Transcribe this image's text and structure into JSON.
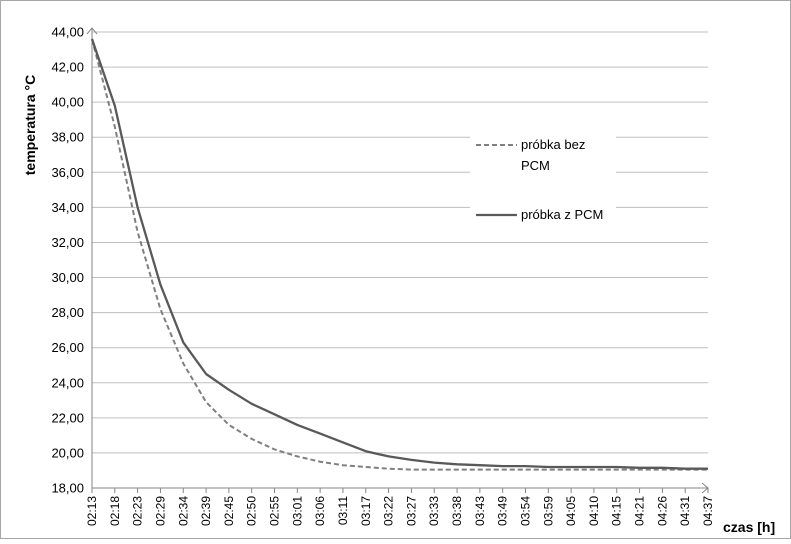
{
  "chart_data": {
    "type": "line",
    "ylabel": "temperatura °C",
    "xlabel": "czas [h]",
    "ylim": [
      18,
      44
    ],
    "y_ticks": [
      "18,00",
      "20,00",
      "22,00",
      "24,00",
      "26,00",
      "28,00",
      "30,00",
      "32,00",
      "34,00",
      "36,00",
      "38,00",
      "40,00",
      "42,00",
      "44,00"
    ],
    "x_ticks": [
      "02:13",
      "02:18",
      "02:23",
      "02:29",
      "02:34",
      "02:39",
      "02:45",
      "02:50",
      "02:55",
      "03:01",
      "03:06",
      "03:11",
      "03:17",
      "03:22",
      "03:27",
      "03:33",
      "03:38",
      "03:43",
      "03:49",
      "03:54",
      "03:59",
      "04:05",
      "04:10",
      "04:15",
      "04:21",
      "04:26",
      "04:31",
      "04:37"
    ],
    "grid": "horizontal",
    "legend_position": "right",
    "series": [
      {
        "name": "próbka bez PCM",
        "style": "dashed",
        "color": "#7f7f7f",
        "values": [
          43.6,
          38.6,
          32.6,
          28.2,
          25.1,
          22.9,
          21.6,
          20.8,
          20.2,
          19.8,
          19.5,
          19.3,
          19.2,
          19.1,
          19.05,
          19.05,
          19.05,
          19.05,
          19.05,
          19.05,
          19.05,
          19.05,
          19.05,
          19.05,
          19.05,
          19.05,
          19.05,
          19.05
        ]
      },
      {
        "name": "próbka z PCM",
        "style": "solid",
        "color": "#595959",
        "values": [
          43.6,
          39.8,
          34.0,
          29.6,
          26.3,
          24.5,
          23.6,
          22.8,
          22.2,
          21.6,
          21.1,
          20.6,
          20.1,
          19.8,
          19.6,
          19.45,
          19.35,
          19.3,
          19.25,
          19.25,
          19.2,
          19.2,
          19.2,
          19.2,
          19.15,
          19.15,
          19.1,
          19.1
        ]
      }
    ]
  }
}
